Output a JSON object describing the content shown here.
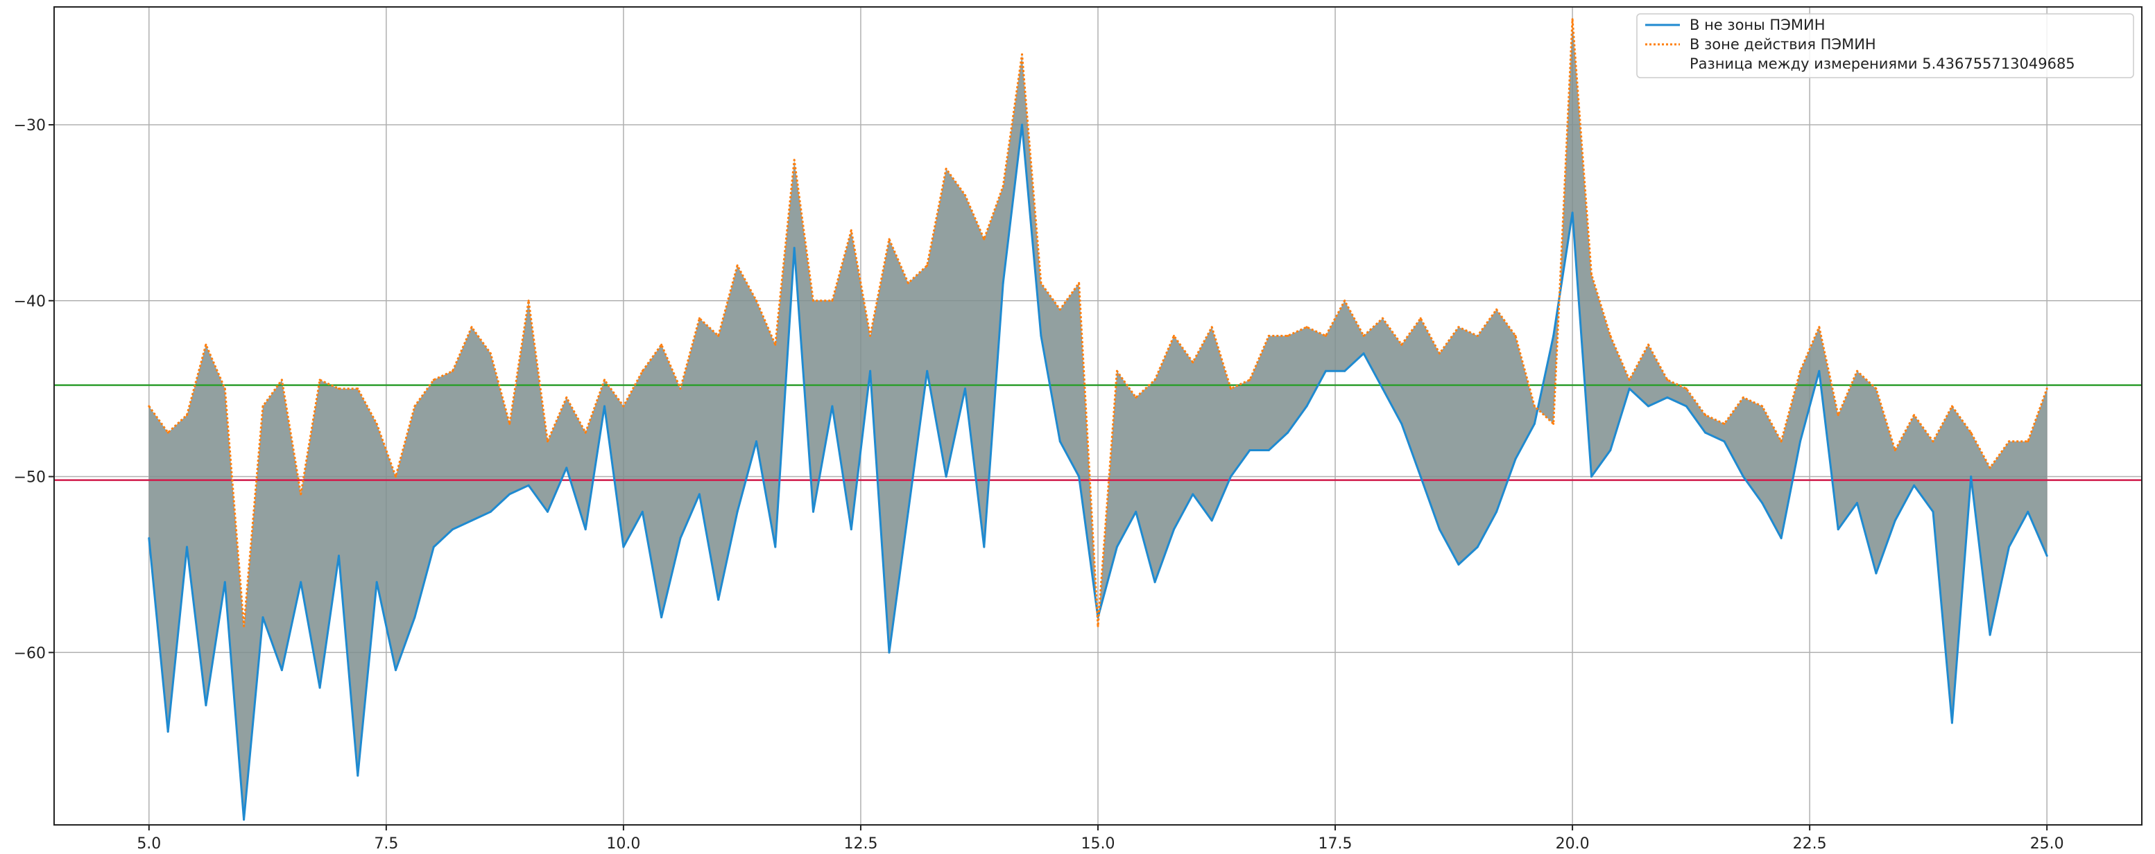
{
  "chart_data": {
    "type": "line",
    "title": "",
    "xlabel": "",
    "ylabel": "",
    "xlim": [
      4.0,
      26.0
    ],
    "ylim": [
      -69.8,
      -23.3
    ],
    "grid": true,
    "legend_placement": "top-right",
    "x_ticks": [
      {
        "value": 5.0,
        "label": "5.0"
      },
      {
        "value": 7.5,
        "label": "7.5"
      },
      {
        "value": 10.0,
        "label": "10.0"
      },
      {
        "value": 12.5,
        "label": "12.5"
      },
      {
        "value": 15.0,
        "label": "15.0"
      },
      {
        "value": 17.5,
        "label": "17.5"
      },
      {
        "value": 20.0,
        "label": "20.0"
      },
      {
        "value": 22.5,
        "label": "22.5"
      },
      {
        "value": 25.0,
        "label": "25.0"
      }
    ],
    "y_ticks": [
      {
        "value": -30,
        "label": "−30"
      },
      {
        "value": -40,
        "label": "−40"
      },
      {
        "value": -50,
        "label": "−50"
      },
      {
        "value": -60,
        "label": "−60"
      }
    ],
    "x": [
      5.0,
      5.2,
      5.4,
      5.6,
      5.8,
      6.0,
      6.2,
      6.4,
      6.6,
      6.8,
      7.0,
      7.2,
      7.4,
      7.6,
      7.8,
      8.0,
      8.2,
      8.4,
      8.6,
      8.8,
      9.0,
      9.2,
      9.4,
      9.6,
      9.8,
      10.0,
      10.2,
      10.4,
      10.6,
      10.8,
      11.0,
      11.2,
      11.4,
      11.6,
      11.8,
      12.0,
      12.2,
      12.4,
      12.6,
      12.8,
      13.0,
      13.2,
      13.4,
      13.6,
      13.8,
      14.0,
      14.2,
      14.4,
      14.6,
      14.8,
      15.0,
      15.2,
      15.4,
      15.6,
      15.8,
      16.0,
      16.2,
      16.4,
      16.6,
      16.8,
      17.0,
      17.2,
      17.4,
      17.6,
      17.8,
      18.0,
      18.2,
      18.4,
      18.6,
      18.8,
      19.0,
      19.2,
      19.4,
      19.6,
      19.8,
      20.0,
      20.2,
      20.4,
      20.6,
      20.8,
      21.0,
      21.2,
      21.4,
      21.6,
      21.8,
      22.0,
      22.2,
      22.4,
      22.6,
      22.8,
      23.0,
      23.2,
      23.4,
      23.6,
      23.8,
      24.0,
      24.2,
      24.4,
      24.6,
      24.8,
      25.0
    ],
    "series": [
      {
        "name": "В не зоны ПЭМИН",
        "color": "#1f8ad0",
        "style": "solid",
        "values": [
          -53.5,
          -64.5,
          -54.0,
          -63.0,
          -56.0,
          -69.5,
          -58.0,
          -61.0,
          -56.0,
          -62.0,
          -54.5,
          -67.0,
          -56.0,
          -61.0,
          -58.0,
          -54.0,
          -53.0,
          -52.5,
          -52.0,
          -51.0,
          -50.5,
          -52.0,
          -49.5,
          -53.0,
          -46.0,
          -54.0,
          -52.0,
          -58.0,
          -53.5,
          -51.0,
          -57.0,
          -52.0,
          -48.0,
          -54.0,
          -37.0,
          -52.0,
          -46.0,
          -53.0,
          -44.0,
          -60.0,
          -52.0,
          -44.0,
          -50.0,
          -45.0,
          -54.0,
          -39.0,
          -30.0,
          -42.0,
          -48.0,
          -50.0,
          -58.0,
          -54.0,
          -52.0,
          -56.0,
          -53.0,
          -51.0,
          -52.5,
          -50.0,
          -48.5,
          -48.5,
          -47.5,
          -46.0,
          -44.0,
          -44.0,
          -43.0,
          -45.0,
          -47.0,
          -50.0,
          -53.0,
          -55.0,
          -54.0,
          -52.0,
          -49.0,
          -47.0,
          -42.0,
          -35.0,
          -50.0,
          -48.5,
          -45.0,
          -46.0,
          -45.5,
          -46.0,
          -47.5,
          -48.0,
          -50.0,
          -51.5,
          -53.5,
          -48.0,
          -44.0,
          -53.0,
          -51.5,
          -55.5,
          -52.5,
          -50.5,
          -52.0,
          -64.0,
          -50.0,
          -59.0,
          -54.0,
          -52.0,
          -54.5
        ]
      },
      {
        "name": "В зоне действия ПЭМИН",
        "color": "#ff7f0e",
        "style": "dotted",
        "values": [
          -46.0,
          -47.5,
          -46.5,
          -42.5,
          -45.0,
          -58.5,
          -46.0,
          -44.5,
          -51.0,
          -44.5,
          -45.0,
          -45.0,
          -47.0,
          -50.0,
          -46.0,
          -44.5,
          -44.0,
          -41.5,
          -43.0,
          -47.0,
          -40.0,
          -48.0,
          -45.5,
          -47.5,
          -44.5,
          -46.0,
          -44.0,
          -42.5,
          -45.0,
          -41.0,
          -42.0,
          -38.0,
          -40.0,
          -42.5,
          -32.0,
          -40.0,
          -40.0,
          -36.0,
          -42.0,
          -36.5,
          -39.0,
          -38.0,
          -32.5,
          -34.0,
          -36.5,
          -33.5,
          -26.0,
          -39.0,
          -40.5,
          -39.0,
          -58.5,
          -44.0,
          -45.5,
          -44.5,
          -42.0,
          -43.5,
          -41.5,
          -45.0,
          -44.5,
          -42.0,
          -42.0,
          -41.5,
          -42.0,
          -40.0,
          -42.0,
          -41.0,
          -42.5,
          -41.0,
          -43.0,
          -41.5,
          -42.0,
          -40.5,
          -42.0,
          -46.0,
          -47.0,
          -24.0,
          -38.5,
          -42.0,
          -44.5,
          -42.5,
          -44.5,
          -45.0,
          -46.5,
          -47.0,
          -45.5,
          -46.0,
          -48.0,
          -44.0,
          -41.5,
          -46.5,
          -44.0,
          -45.0,
          -48.5,
          -46.5,
          -48.0,
          -46.0,
          -47.5,
          -49.5,
          -48.0,
          -48.0,
          -45.0
        ]
      }
    ],
    "difference_label": "Разница между измерениями 5.436755713049685",
    "difference_fill_color": "#7f8f8f",
    "reference_lines": [
      {
        "y": -44.8,
        "color": "#2e9e2e"
      },
      {
        "y": -50.2,
        "color": "#d11a4a"
      }
    ]
  }
}
